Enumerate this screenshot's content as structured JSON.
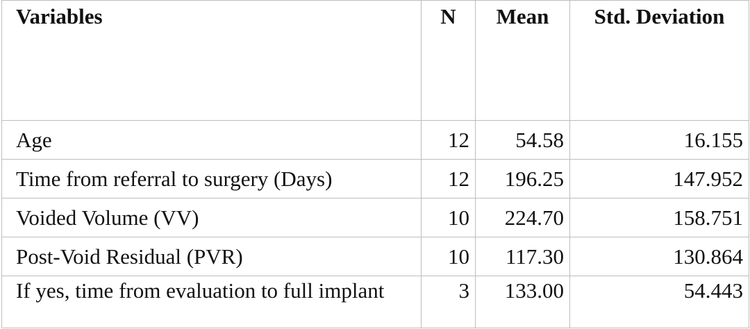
{
  "table": {
    "headers": [
      "Variables",
      "N",
      "Mean",
      "Std. Deviation"
    ],
    "rows": [
      {
        "variable": "Age",
        "n": "12",
        "mean": "54.58",
        "sd": "16.155"
      },
      {
        "variable": "Time from referral to surgery (Days)",
        "n": "12",
        "mean": "196.25",
        "sd": "147.952"
      },
      {
        "variable": "Voided Volume (VV)",
        "n": "10",
        "mean": "224.70",
        "sd": "158.751"
      },
      {
        "variable": "Post-Void Residual (PVR)",
        "n": "10",
        "mean": "117.30",
        "sd": "130.864"
      },
      {
        "variable": "If yes, time from evaluation to full implant",
        "n": "3",
        "mean": "133.00",
        "sd": "54.443"
      }
    ]
  }
}
